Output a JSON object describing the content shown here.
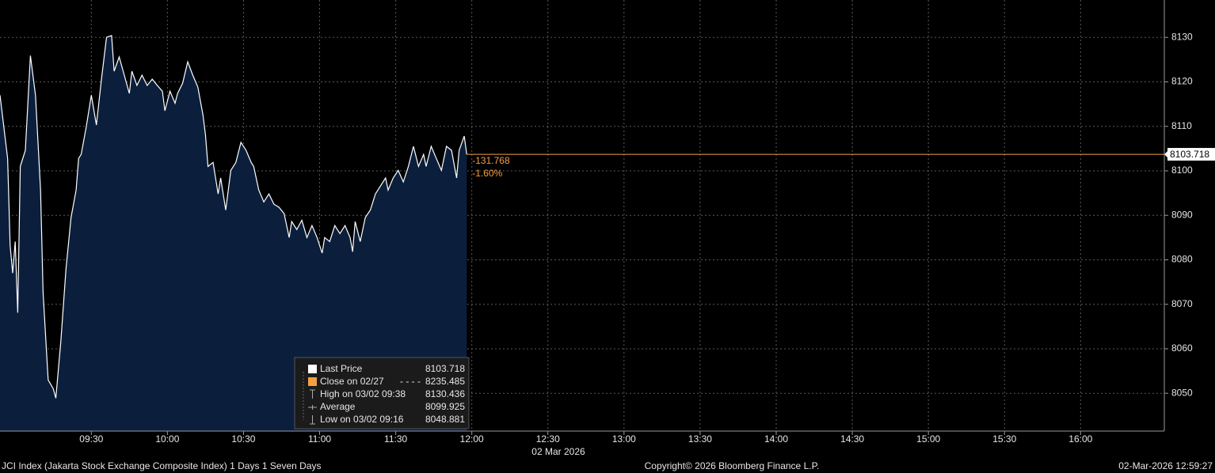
{
  "chart_data": {
    "type": "area",
    "x": [
      "08:54",
      "08:57",
      "08:58",
      "08:59",
      "09:00",
      "09:01",
      "09:02",
      "09:04",
      "09:06",
      "09:08",
      "09:10",
      "09:11",
      "09:13",
      "09:15",
      "09:16",
      "09:18",
      "09:20",
      "09:22",
      "09:24",
      "09:25",
      "09:26",
      "09:28",
      "09:30",
      "09:32",
      "09:34",
      "09:36",
      "09:38",
      "09:39",
      "09:41",
      "09:43",
      "09:45",
      "09:46",
      "09:48",
      "09:50",
      "09:52",
      "09:54",
      "09:56",
      "09:58",
      "09:59",
      "10:01",
      "10:03",
      "10:04",
      "10:06",
      "10:08",
      "10:10",
      "10:12",
      "10:14",
      "10:15",
      "10:16",
      "10:18",
      "10:20",
      "10:21",
      "10:23",
      "10:25",
      "10:27",
      "10:29",
      "10:31",
      "10:33",
      "10:34",
      "10:36",
      "10:38",
      "10:40",
      "10:42",
      "10:44",
      "10:46",
      "10:48",
      "10:49",
      "10:51",
      "10:53",
      "10:55",
      "10:57",
      "10:59",
      "11:01",
      "11:02",
      "11:04",
      "11:06",
      "11:08",
      "11:10",
      "11:12",
      "11:13",
      "11:14",
      "11:16",
      "11:18",
      "11:20",
      "11:22",
      "11:24",
      "11:26",
      "11:27",
      "11:29",
      "11:31",
      "11:33",
      "11:35",
      "11:37",
      "11:39",
      "11:41",
      "11:42",
      "11:44",
      "11:46",
      "11:48",
      "11:50",
      "11:52",
      "11:54",
      "11:55",
      "11:57",
      "11:58"
    ],
    "series": [
      {
        "color": "#ffffff",
        "fill": "#0b1f3d",
        "values": [
          8117.0,
          8102.8,
          8083.2,
          8077.0,
          8084.1,
          8068.1,
          8101.0,
          8104.6,
          8125.9,
          8117.0,
          8095.7,
          8072.6,
          8053.0,
          8051.0,
          8048.9,
          8061.9,
          8077.9,
          8089.5,
          8095.7,
          8102.8,
          8103.7,
          8109.9,
          8117.0,
          8110.3,
          8120.6,
          8130.0,
          8130.4,
          8122.4,
          8125.6,
          8121.5,
          8117.4,
          8122.4,
          8119.2,
          8121.5,
          8119.2,
          8120.6,
          8119.2,
          8117.9,
          8113.5,
          8117.9,
          8115.2,
          8117.4,
          8119.7,
          8124.5,
          8121.5,
          8118.8,
          8112.6,
          8108.1,
          8101.0,
          8101.9,
          8094.8,
          8098.4,
          8091.2,
          8100.1,
          8101.9,
          8106.4,
          8104.6,
          8101.9,
          8101.0,
          8095.7,
          8093.0,
          8094.8,
          8092.5,
          8091.8,
          8090.4,
          8085.0,
          8088.6,
          8086.8,
          8088.9,
          8085.0,
          8087.7,
          8085.0,
          8081.5,
          8085.0,
          8084.1,
          8087.7,
          8085.9,
          8087.7,
          8085.0,
          8081.8,
          8088.6,
          8084.1,
          8089.5,
          8091.2,
          8094.8,
          8096.6,
          8098.4,
          8095.7,
          8098.4,
          8100.1,
          8097.5,
          8101.0,
          8105.5,
          8101.0,
          8103.7,
          8101.0,
          8105.5,
          8102.8,
          8100.1,
          8105.5,
          8104.6,
          8098.4,
          8104.6,
          8107.8,
          8103.7
        ]
      }
    ],
    "xlim": [
      "08:54",
      "16:33"
    ],
    "xticks": [
      "09:30",
      "10:00",
      "10:30",
      "11:00",
      "11:30",
      "12:00",
      "12:30",
      "13:00",
      "13:30",
      "14:00",
      "14:30",
      "15:00",
      "15:30",
      "16:00"
    ],
    "x_axis_label": "02 Mar 2026",
    "ylim": [
      8041.5,
      8138.4
    ],
    "yticks": [
      8050,
      8060,
      8070,
      8080,
      8090,
      8100,
      8110,
      8120,
      8130
    ],
    "grid": true,
    "last_price": 8103.718,
    "last_price_color": "#f5a040",
    "change": "-131.768",
    "change_pct": "-1.60%",
    "legend": [
      {
        "name": "Last Price",
        "value": 8103.718
      },
      {
        "name": "Close on 02/27",
        "value": 8235.485
      },
      {
        "name": "High on 03/02 09:38",
        "value": 8130.436
      },
      {
        "name": "Average",
        "value": 8099.925
      },
      {
        "name": "Low on 03/02 09:16",
        "value": 8048.881
      }
    ]
  },
  "footer": {
    "left": "JCI Index (Jakarta Stock Exchange Composite Index) 1 Days 1 Seven Days",
    "center": "Copyright© 2026 Bloomberg Finance L.P.",
    "right": "02-Mar-2026 12:59:27"
  }
}
